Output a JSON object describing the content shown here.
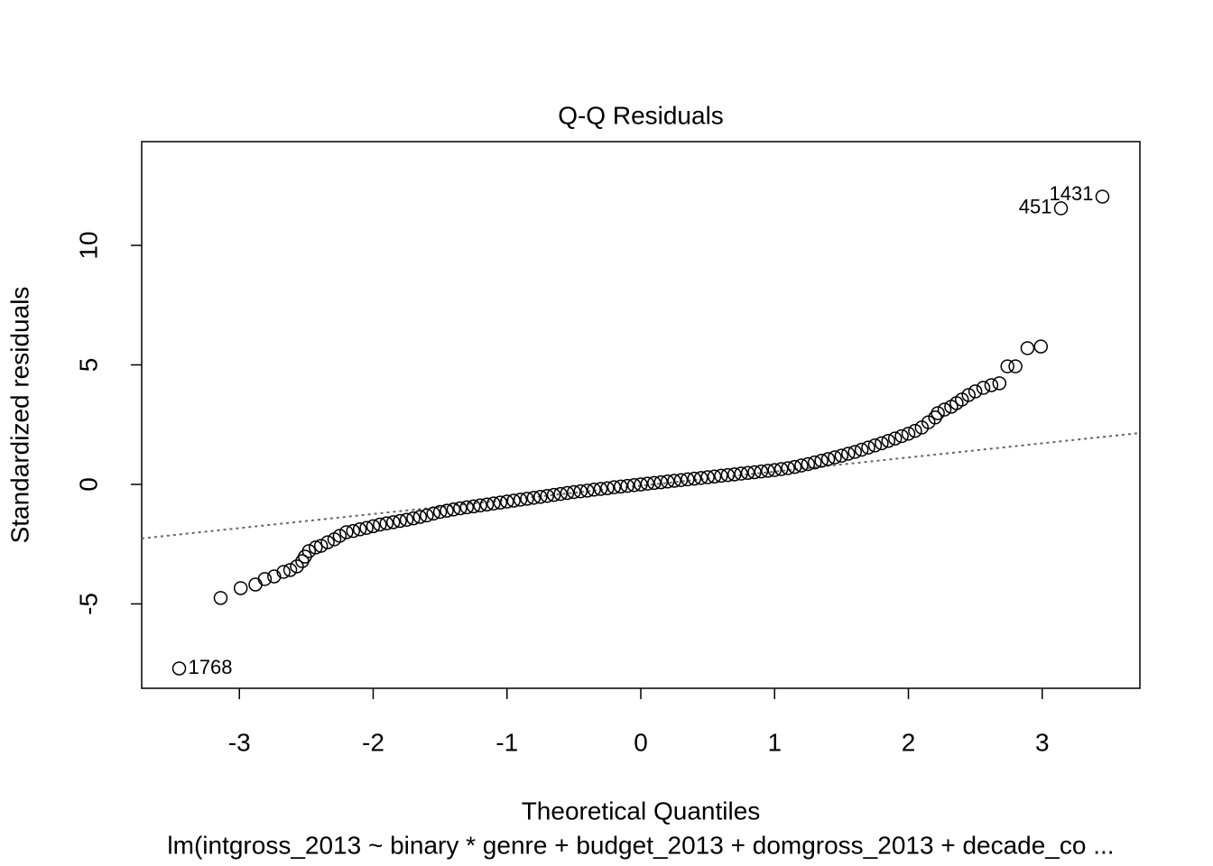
{
  "chart_data": {
    "type": "scatter",
    "title": "Q-Q Residuals",
    "x_label": "Theoretical Quantiles",
    "y_label": "Standardized residuals",
    "subtitle": "lm(intgross_2013 ~ binary * genre + budget_2013 + domgross_2013 + decade_co ...",
    "xlim": [
      -3.73,
      3.73
    ],
    "ylim": [
      -8.53,
      14.34
    ],
    "xticks": [
      -3,
      -2,
      -1,
      0,
      1,
      2,
      3
    ],
    "yticks": [
      -5,
      0,
      5,
      10
    ],
    "marker_color": "#000000",
    "qqline": {
      "x": [
        -3.73,
        3.73
      ],
      "y": [
        -2.26,
        2.15
      ],
      "color": "#666666"
    },
    "x": [
      -3.45,
      -3.14,
      -2.99,
      -2.88,
      -2.81,
      -2.74,
      -2.67,
      -2.62,
      -2.57,
      -2.53,
      -2.51,
      -2.48,
      -2.43,
      -2.39,
      -2.34,
      -2.29,
      -2.25,
      -2.2,
      -2.15,
      -2.1,
      -2.05,
      -2.0,
      -1.95,
      -1.9,
      -1.85,
      -1.8,
      -1.75,
      -1.7,
      -1.65,
      -1.6,
      -1.55,
      -1.5,
      -1.45,
      -1.4,
      -1.35,
      -1.3,
      -1.25,
      -1.2,
      -1.15,
      -1.1,
      -1.05,
      -1.0,
      -0.95,
      -0.9,
      -0.85,
      -0.8,
      -0.75,
      -0.7,
      -0.65,
      -0.6,
      -0.55,
      -0.5,
      -0.45,
      -0.4,
      -0.35,
      -0.3,
      -0.25,
      -0.2,
      -0.15,
      -0.1,
      -0.05,
      0,
      0.05,
      0.1,
      0.15,
      0.2,
      0.25,
      0.3,
      0.35,
      0.4,
      0.45,
      0.5,
      0.55,
      0.6,
      0.65,
      0.7,
      0.75,
      0.8,
      0.85,
      0.9,
      0.95,
      1.0,
      1.05,
      1.1,
      1.15,
      1.2,
      1.25,
      1.3,
      1.35,
      1.4,
      1.45,
      1.5,
      1.55,
      1.6,
      1.65,
      1.7,
      1.75,
      1.8,
      1.85,
      1.9,
      1.95,
      2.0,
      2.05,
      2.1,
      2.15,
      2.2,
      2.22,
      2.27,
      2.32,
      2.36,
      2.4,
      2.45,
      2.5,
      2.56,
      2.62,
      2.68,
      2.74,
      2.8,
      2.89,
      2.99,
      3.14,
      3.45
    ],
    "y": [
      -7.7,
      -4.75,
      -4.34,
      -4.19,
      -3.96,
      -3.85,
      -3.66,
      -3.58,
      -3.43,
      -3.21,
      -3.02,
      -2.79,
      -2.64,
      -2.57,
      -2.42,
      -2.3,
      -2.15,
      -2.0,
      -1.95,
      -1.88,
      -1.82,
      -1.75,
      -1.68,
      -1.63,
      -1.58,
      -1.53,
      -1.48,
      -1.42,
      -1.36,
      -1.3,
      -1.22,
      -1.15,
      -1.1,
      -1.05,
      -1.0,
      -0.96,
      -0.92,
      -0.88,
      -0.84,
      -0.8,
      -0.76,
      -0.72,
      -0.68,
      -0.64,
      -0.6,
      -0.56,
      -0.52,
      -0.48,
      -0.44,
      -0.4,
      -0.36,
      -0.32,
      -0.29,
      -0.26,
      -0.22,
      -0.19,
      -0.16,
      -0.12,
      -0.09,
      -0.06,
      -0.03,
      0,
      0.03,
      0.06,
      0.09,
      0.12,
      0.15,
      0.18,
      0.21,
      0.24,
      0.27,
      0.3,
      0.33,
      0.36,
      0.39,
      0.42,
      0.45,
      0.48,
      0.51,
      0.54,
      0.57,
      0.6,
      0.64,
      0.68,
      0.73,
      0.79,
      0.85,
      0.92,
      0.99,
      1.06,
      1.13,
      1.2,
      1.28,
      1.36,
      1.45,
      1.54,
      1.63,
      1.72,
      1.82,
      1.92,
      2.02,
      2.12,
      2.24,
      2.38,
      2.6,
      2.8,
      2.98,
      3.13,
      3.25,
      3.4,
      3.55,
      3.74,
      3.89,
      4.04,
      4.15,
      4.23,
      4.94,
      4.94,
      5.7,
      5.77,
      11.55,
      12.04
    ],
    "annotations": [
      {
        "text": "1768",
        "x": -3.45,
        "y": -7.7,
        "side": "right"
      },
      {
        "text": "451",
        "x": 3.14,
        "y": 11.55,
        "side": "left"
      },
      {
        "text": "1431",
        "x": 3.45,
        "y": 12.04,
        "side": "left"
      }
    ]
  }
}
